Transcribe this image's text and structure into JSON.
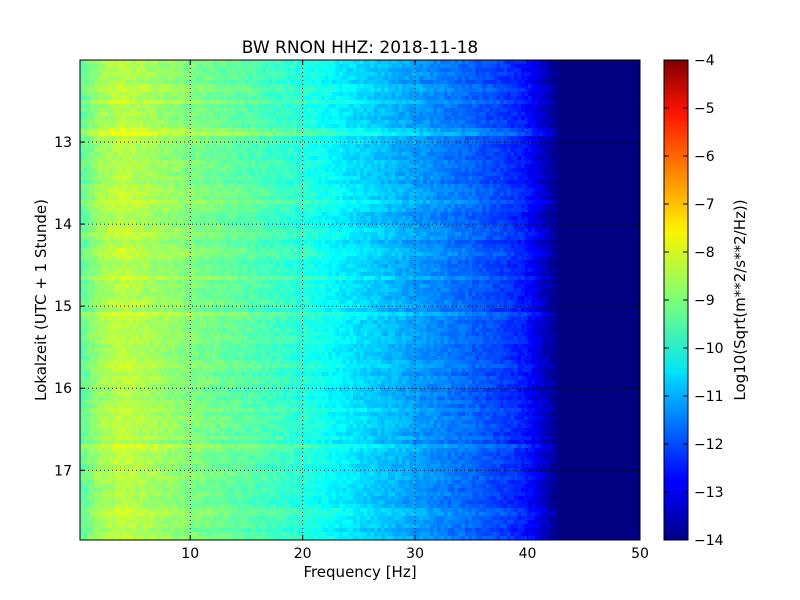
{
  "chart_data": {
    "type": "heatmap",
    "title": "BW RNON HHZ: 2018-11-18",
    "xlabel": "Frequency [Hz]",
    "ylabel": "Lokalzeit (UTC + 1 Stunde)",
    "xlim": [
      0.2,
      50
    ],
    "ylim": [
      12.0,
      17.85
    ],
    "y_inverted": true,
    "x_ticks": [
      10,
      20,
      30,
      40,
      50
    ],
    "x_tick_labels": [
      "10",
      "20",
      "30",
      "40",
      "50"
    ],
    "y_ticks": [
      13,
      14,
      15,
      16,
      17
    ],
    "y_tick_labels": [
      "13",
      "14",
      "15",
      "16",
      "17"
    ],
    "grid": true,
    "colormap": "jet",
    "colorbar": {
      "label": "Log10(Sqrt(m**2/s**2/Hz))",
      "min": -14,
      "max": -4,
      "ticks": [
        -4,
        -5,
        -6,
        -7,
        -8,
        -9,
        -10,
        -11,
        -12,
        -13,
        -14
      ],
      "tick_labels": [
        "−4",
        "−5",
        "−6",
        "−7",
        "−8",
        "−9",
        "−10",
        "−11",
        "−12",
        "−13",
        "−14"
      ]
    },
    "spectrum_profile": {
      "frequency_hz": [
        0.2,
        2,
        4,
        6,
        10,
        15,
        20,
        25,
        30,
        35,
        38,
        40,
        42,
        43,
        50
      ],
      "value": [
        -9.4,
        -8.7,
        -8.4,
        -8.6,
        -9.0,
        -9.4,
        -9.9,
        -10.6,
        -11.2,
        -11.8,
        -12.2,
        -12.6,
        -13.6,
        -14.0,
        -14.0
      ]
    },
    "bright_bands": [
      {
        "time_h": 12.88,
        "strength": 1.0
      },
      {
        "time_h": 12.34,
        "strength": 0.4
      },
      {
        "time_h": 12.5,
        "strength": 0.3
      },
      {
        "time_h": 13.25,
        "strength": 0.2
      },
      {
        "time_h": 13.6,
        "strength": 0.45
      },
      {
        "time_h": 13.75,
        "strength": 0.4
      },
      {
        "time_h": 14.1,
        "strength": 0.3
      },
      {
        "time_h": 14.35,
        "strength": 0.4
      },
      {
        "time_h": 14.65,
        "strength": 0.45
      },
      {
        "time_h": 15.1,
        "strength": 0.4
      },
      {
        "time_h": 15.45,
        "strength": 0.2
      },
      {
        "time_h": 15.72,
        "strength": 0.35
      },
      {
        "time_h": 16.25,
        "strength": 0.2
      },
      {
        "time_h": 16.72,
        "strength": 0.55
      },
      {
        "time_h": 17.05,
        "strength": 0.2
      },
      {
        "time_h": 17.5,
        "strength": 0.45
      }
    ]
  }
}
